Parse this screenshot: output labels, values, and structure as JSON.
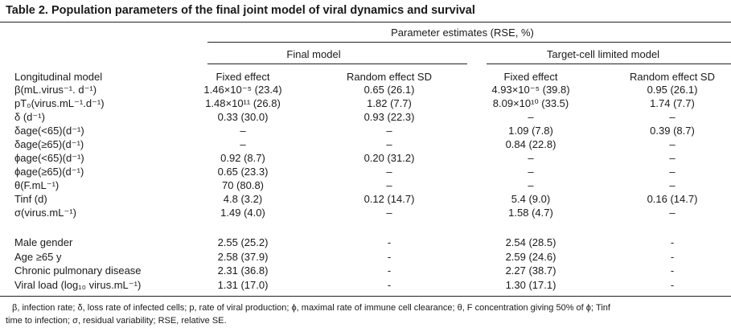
{
  "title": "Table 2.   Population parameters of the final joint model of viral dynamics and survival",
  "header": {
    "parameter_estimates": "Parameter estimates (RSE, %)",
    "final_model": "Final model",
    "target_cell_model": "Target-cell limited model",
    "longitudinal_model": "Longitudinal model",
    "final_fixed": "Fixed effect",
    "final_random": "Random effect SD",
    "tc_fixed": "Fixed effect",
    "tc_random": "Random effect SD"
  },
  "rows": [
    {
      "label": "β(mL.virus⁻¹. d⁻¹)",
      "ff": "1.46×10⁻⁵ (23.4)",
      "fr": "0.65 (26.1)",
      "tf": "4.93×10⁻⁵ (39.8)",
      "tr": "0.95 (26.1)"
    },
    {
      "label": "pT₀(virus.mL⁻¹.d⁻¹)",
      "ff": "1.48×10¹¹ (26.8)",
      "fr": "1.82 (7.7)",
      "tf": "8.09×10¹⁰ (33.5)",
      "tr": "1.74 (7.7)"
    },
    {
      "label": "δ (d⁻¹)",
      "ff": "0.33 (30.0)",
      "fr": "0.93 (22.3)",
      "tf": "–",
      "tr": "–"
    },
    {
      "label": "δage(<65)(d⁻¹)",
      "ff": "–",
      "fr": "–",
      "tf": "1.09 (7.8)",
      "tr": "0.39 (8.7)"
    },
    {
      "label": "δage(≥65)(d⁻¹)",
      "ff": "–",
      "fr": "–",
      "tf": "0.84 (22.8)",
      "tr": "–"
    },
    {
      "label": "ϕage(<65)(d⁻¹)",
      "ff": "0.92 (8.7)",
      "fr": "0.20 (31.2)",
      "tf": "–",
      "tr": "–"
    },
    {
      "label": "ϕage(≥65)(d⁻¹)",
      "ff": "0.65 (23.3)",
      "fr": "–",
      "tf": "–",
      "tr": "–"
    },
    {
      "label": "θ(F.mL⁻¹)",
      "ff": "70 (80.8)",
      "fr": "–",
      "tf": "–",
      "tr": "–"
    },
    {
      "label": "Tinf (d)",
      "ff": "4.8 (3.2)",
      "fr": "0.12 (14.7)",
      "tf": "5.4 (9.0)",
      "tr": "0.16 (14.7)"
    },
    {
      "label": "σ(virus.mL⁻¹)",
      "ff": "1.49 (4.0)",
      "fr": "–",
      "tf": "1.58 (4.7)",
      "tr": "–"
    }
  ],
  "rows2": [
    {
      "label": "Male gender",
      "ff": "2.55 (25.2)",
      "fr": "-",
      "tf": "2.54 (28.5)",
      "tr": "-"
    },
    {
      "label": "Age ≥65 y",
      "ff": "2.58 (37.9)",
      "fr": "-",
      "tf": "2.59 (24.6)",
      "tr": "-"
    },
    {
      "label": "Chronic pulmonary disease",
      "ff": "2.31 (36.8)",
      "fr": "-",
      "tf": "2.27 (38.7)",
      "tr": "-"
    },
    {
      "label": "Viral load (log₁₀ virus.mL⁻¹)",
      "ff": "1.31 (17.0)",
      "fr": "-",
      "tf": "1.30 (17.1)",
      "tr": "-"
    }
  ],
  "footer": {
    "line1": "β, infection rate; δ, loss rate of infected cells; p, rate of viral production; ϕ, maximal rate of immune cell clearance; θ, F concentration giving 50% of ϕ; Tinf",
    "line2": "time to infection; σ, residual variability; RSE, relative SE."
  }
}
